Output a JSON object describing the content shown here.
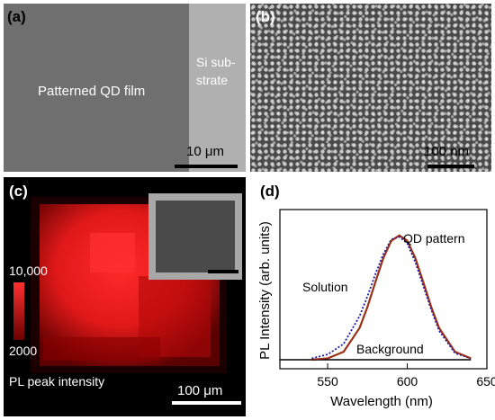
{
  "panels": {
    "a": {
      "label": "(a)",
      "film_label": "Patterned QD film",
      "substrate_label_line1": "Si sub-",
      "substrate_label_line2": "strate",
      "scale_bar": "10 μm"
    },
    "b": {
      "label": "(b)",
      "scale_bar": "100 nm"
    },
    "c": {
      "label": "(c)",
      "colorbar_max": "10,000",
      "colorbar_min": "2000",
      "colorbar_title": "PL peak intensity",
      "scale_bar": "100 μm"
    },
    "d": {
      "label": "(d)"
    }
  },
  "colors": {
    "map_red": "#ff2020",
    "qd_pattern": "#7a3a10",
    "solution": "#1a1a9a",
    "fit": "#cc2020",
    "background_line": "#000000"
  },
  "chart_data": {
    "type": "line",
    "xlabel": "Wavelength (nm)",
    "ylabel": "PL Intensity (arb. units)",
    "xlim": [
      520,
      650
    ],
    "ylim": [
      0,
      1.0
    ],
    "x_ticks": [
      "550",
      "600",
      "650"
    ],
    "series": [
      {
        "name": "QD pattern",
        "x": [
          540,
          550,
          560,
          570,
          575,
          580,
          585,
          590,
          595,
          600,
          605,
          610,
          615,
          620,
          630,
          640
        ],
        "values": [
          0.0,
          0.01,
          0.06,
          0.24,
          0.4,
          0.59,
          0.77,
          0.9,
          0.94,
          0.9,
          0.77,
          0.59,
          0.4,
          0.24,
          0.06,
          0.01
        ]
      },
      {
        "name": "Solution",
        "x": [
          540,
          550,
          560,
          570,
          575,
          580,
          585,
          590,
          595,
          600,
          605,
          610,
          615,
          620,
          630,
          640
        ],
        "values": [
          0.01,
          0.04,
          0.12,
          0.33,
          0.48,
          0.65,
          0.8,
          0.91,
          0.93,
          0.88,
          0.74,
          0.56,
          0.38,
          0.22,
          0.05,
          0.01
        ]
      },
      {
        "name": "Background",
        "x": [
          520,
          640
        ],
        "values": [
          0.0,
          0.0
        ]
      }
    ]
  }
}
